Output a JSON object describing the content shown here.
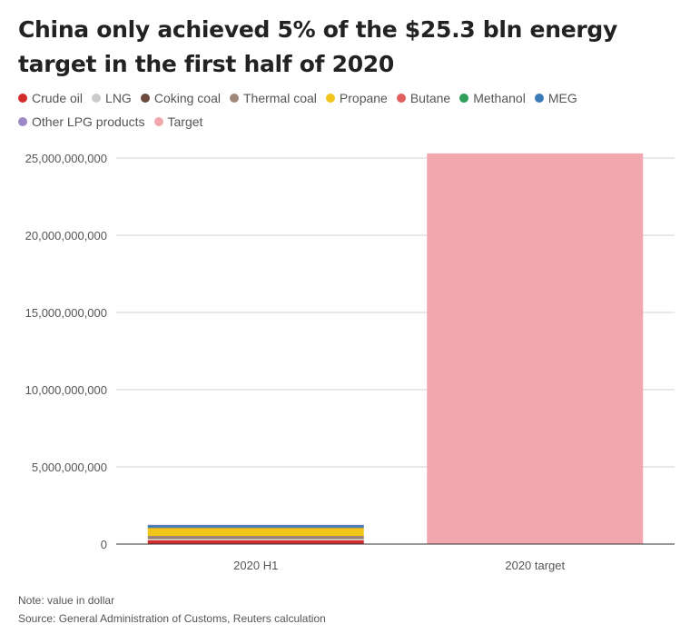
{
  "title": "China only achieved 5% of the $25.3 bln energy target in the first half of 2020",
  "note": "Note: value in dollar",
  "source": "Source: General Administration of Customs, Reuters calculation",
  "chart_data": {
    "type": "bar",
    "stacked": true,
    "categories": [
      "2020 H1",
      "2020 target"
    ],
    "series": [
      {
        "name": "Crude oil",
        "color": "#d62b2b",
        "values": [
          250000000,
          0
        ]
      },
      {
        "name": "LNG",
        "color": "#cccccc",
        "values": [
          100000000,
          0
        ]
      },
      {
        "name": "Coking coal",
        "color": "#6b4a3a",
        "values": [
          30000000,
          0
        ]
      },
      {
        "name": "Thermal coal",
        "color": "#a08878",
        "values": [
          150000000,
          0
        ]
      },
      {
        "name": "Propane",
        "color": "#f0c419",
        "values": [
          500000000,
          0
        ]
      },
      {
        "name": "Butane",
        "color": "#e06060",
        "values": [
          30000000,
          0
        ]
      },
      {
        "name": "Methanol",
        "color": "#2e9e5a",
        "values": [
          20000000,
          0
        ]
      },
      {
        "name": "MEG",
        "color": "#3a7ab8",
        "values": [
          150000000,
          0
        ]
      },
      {
        "name": "Other LPG products",
        "color": "#9b88c4",
        "values": [
          20000000,
          0
        ]
      },
      {
        "name": "Target",
        "color": "#f2a7ae",
        "values": [
          0,
          25300000000
        ]
      }
    ],
    "yticks": [
      "0",
      "5,000,000,000",
      "10,000,000,000",
      "15,000,000,000",
      "20,000,000,000",
      "25,000,000,000"
    ],
    "ytick_values": [
      0,
      5000000000,
      10000000000,
      15000000000,
      20000000000,
      25000000000
    ],
    "ylim": [
      0,
      26000000000
    ],
    "xlabel": "",
    "ylabel": "",
    "grid": true
  }
}
